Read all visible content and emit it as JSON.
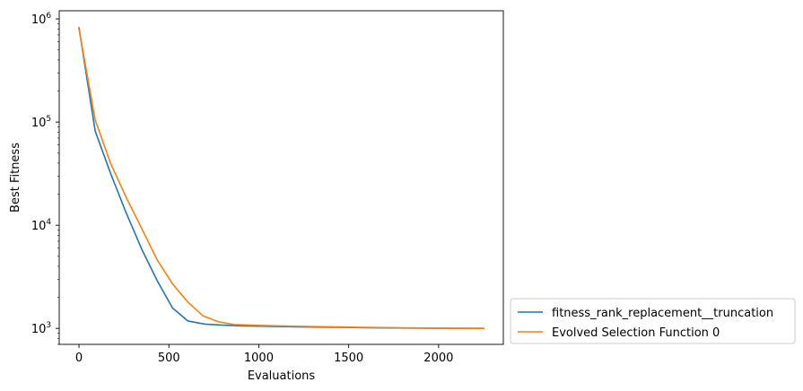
{
  "chart_data": {
    "type": "line",
    "xlabel": "Evaluations",
    "ylabel": "Best Fitness",
    "xlim": [
      -110,
      2360
    ],
    "ylim": [
      700,
      1200000
    ],
    "yscale": "log",
    "grid": false,
    "legend_position": "outside-bottom-right",
    "x_ticks": [
      {
        "value": 0,
        "label": "0"
      },
      {
        "value": 500,
        "label": "500"
      },
      {
        "value": 1000,
        "label": "1000"
      },
      {
        "value": 1500,
        "label": "1500"
      },
      {
        "value": 2000,
        "label": "2000"
      }
    ],
    "y_ticks": [
      {
        "value": 1000,
        "base": "10",
        "exp": "3"
      },
      {
        "value": 10000,
        "base": "10",
        "exp": "4"
      },
      {
        "value": 100000,
        "base": "10",
        "exp": "5"
      },
      {
        "value": 1000000,
        "base": "10",
        "exp": "6"
      }
    ],
    "series": [
      {
        "name": "fitness_rank_replacement__truncation",
        "color": "#1f77b4",
        "points": [
          [
            0,
            820000
          ],
          [
            90,
            82000
          ],
          [
            175,
            32000
          ],
          [
            260,
            13500
          ],
          [
            350,
            5800
          ],
          [
            435,
            2900
          ],
          [
            520,
            1580
          ],
          [
            605,
            1180
          ],
          [
            700,
            1100
          ],
          [
            800,
            1075
          ],
          [
            900,
            1060
          ],
          [
            1000,
            1050
          ],
          [
            1200,
            1035
          ],
          [
            1400,
            1025
          ],
          [
            1600,
            1015
          ],
          [
            1800,
            1008
          ],
          [
            2000,
            1003
          ],
          [
            2250,
            1000
          ]
        ]
      },
      {
        "name": "Evolved Selection Function 0",
        "color": "#ff7f0e",
        "points": [
          [
            0,
            800000
          ],
          [
            90,
            105000
          ],
          [
            175,
            40000
          ],
          [
            260,
            19000
          ],
          [
            350,
            9200
          ],
          [
            435,
            4600
          ],
          [
            520,
            2700
          ],
          [
            605,
            1800
          ],
          [
            690,
            1320
          ],
          [
            775,
            1160
          ],
          [
            860,
            1090
          ],
          [
            1000,
            1070
          ],
          [
            1200,
            1050
          ],
          [
            1400,
            1035
          ],
          [
            1600,
            1022
          ],
          [
            1800,
            1012
          ],
          [
            2000,
            1005
          ],
          [
            2250,
            1000
          ]
        ]
      }
    ]
  }
}
